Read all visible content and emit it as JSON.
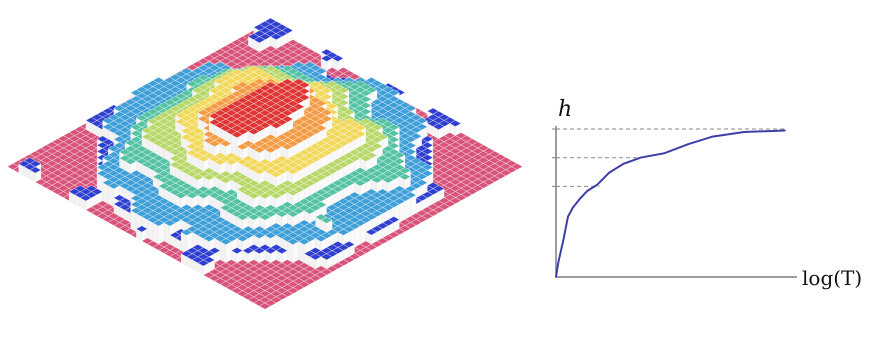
{
  "surface_panel": {
    "levels": [
      {
        "level": 0,
        "color": "#d9547a"
      },
      {
        "level": 1,
        "color": "#2f3fd0"
      },
      {
        "level": 2,
        "color": "#3f9fd8"
      },
      {
        "level": 3,
        "color": "#55c3a3"
      },
      {
        "level": 4,
        "color": "#b9d86a"
      },
      {
        "level": 5,
        "color": "#f2d85b"
      },
      {
        "level": 6,
        "color": "#f39c45"
      },
      {
        "level": 7,
        "color": "#df3535"
      }
    ],
    "column_side_color": "#f3f3f3",
    "grid_line_color": "#ffffff"
  },
  "plot": {
    "y_axis_label": "h",
    "x_axis_label": "log(T)",
    "curve_color": "#3d3fa8",
    "guide_line_color": "#8a8a8a",
    "chart_data": {
      "type": "line",
      "title": "",
      "x_label": "log(T)",
      "y_label": "h",
      "x_range": [
        0,
        1
      ],
      "y_range": [
        0,
        1
      ],
      "points": [
        [
          0.0,
          0.0
        ],
        [
          0.01,
          0.1
        ],
        [
          0.03,
          0.24
        ],
        [
          0.05,
          0.4
        ],
        [
          0.07,
          0.46
        ],
        [
          0.1,
          0.52
        ],
        [
          0.13,
          0.57
        ],
        [
          0.17,
          0.61
        ],
        [
          0.22,
          0.69
        ],
        [
          0.28,
          0.75
        ],
        [
          0.35,
          0.79
        ],
        [
          0.45,
          0.82
        ],
        [
          0.55,
          0.88
        ],
        [
          0.65,
          0.93
        ],
        [
          0.78,
          0.96
        ],
        [
          0.95,
          0.97
        ]
      ],
      "guide_levels": [
        0.98,
        0.79,
        0.6
      ],
      "guide_starts": [
        0.0,
        0.0,
        0.0
      ],
      "guide_ends": [
        0.95,
        0.35,
        0.18
      ]
    }
  }
}
